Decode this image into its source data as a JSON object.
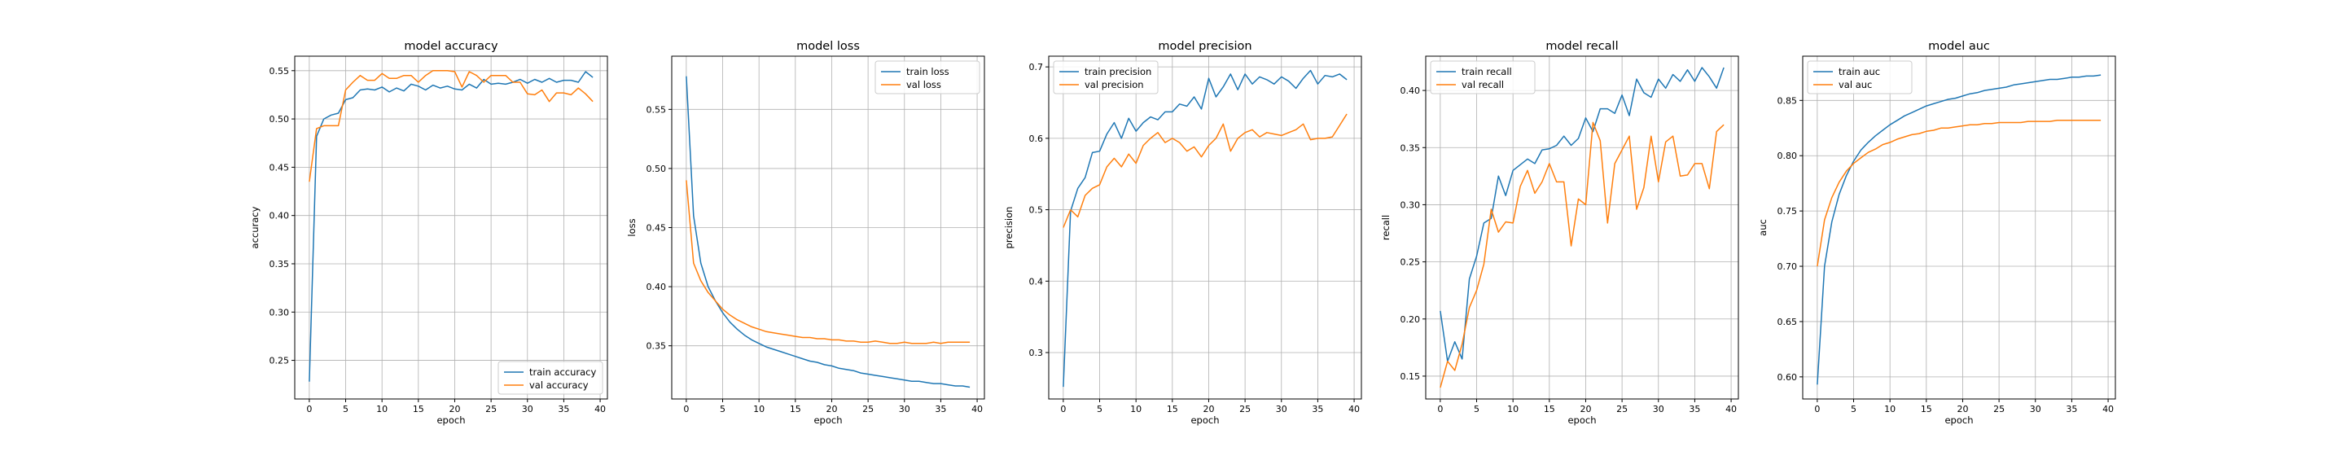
{
  "figure": {
    "background": "#ffffff",
    "grid": true
  },
  "chart_data": [
    {
      "type": "line",
      "title": "model accuracy",
      "xlabel": "epoch",
      "ylabel": "accuracy",
      "xlim": [
        -2,
        41
      ],
      "ylim": [
        0.21,
        0.565
      ],
      "xticks": [
        0,
        5,
        10,
        15,
        20,
        25,
        30,
        35,
        40
      ],
      "yticks": [
        0.25,
        0.3,
        0.35,
        0.4,
        0.45,
        0.5,
        0.55
      ],
      "ytick_labels": [
        "0.25",
        "0.30",
        "0.35",
        "0.40",
        "0.45",
        "0.50",
        "0.55"
      ],
      "legend_loc": "lower right",
      "grid": true,
      "x": [
        0,
        1,
        2,
        3,
        4,
        5,
        6,
        7,
        8,
        9,
        10,
        11,
        12,
        13,
        14,
        15,
        16,
        17,
        18,
        19,
        20,
        21,
        22,
        23,
        24,
        25,
        26,
        27,
        28,
        29,
        30,
        31,
        32,
        33,
        34,
        35,
        36,
        37,
        38,
        39
      ],
      "series": [
        {
          "name": "train accuracy",
          "color": "#1f77b4",
          "values": [
            0.228,
            0.482,
            0.5,
            0.504,
            0.506,
            0.52,
            0.522,
            0.53,
            0.531,
            0.53,
            0.533,
            0.528,
            0.532,
            0.529,
            0.536,
            0.534,
            0.53,
            0.535,
            0.532,
            0.534,
            0.531,
            0.53,
            0.536,
            0.532,
            0.541,
            0.536,
            0.537,
            0.536,
            0.538,
            0.541,
            0.537,
            0.541,
            0.538,
            0.542,
            0.538,
            0.54,
            0.54,
            0.538,
            0.549,
            0.543
          ]
        },
        {
          "name": "val accuracy",
          "color": "#ff7f0e",
          "values": [
            0.435,
            0.49,
            0.493,
            0.493,
            0.493,
            0.53,
            0.538,
            0.545,
            0.54,
            0.54,
            0.547,
            0.542,
            0.542,
            0.545,
            0.545,
            0.538,
            0.545,
            0.55,
            0.55,
            0.55,
            0.549,
            0.533,
            0.549,
            0.545,
            0.538,
            0.545,
            0.545,
            0.545,
            0.538,
            0.538,
            0.526,
            0.525,
            0.53,
            0.518,
            0.527,
            0.527,
            0.525,
            0.532,
            0.526,
            0.518
          ]
        }
      ]
    },
    {
      "type": "line",
      "title": "model loss",
      "xlabel": "epoch",
      "ylabel": "loss",
      "xlim": [
        -2,
        41
      ],
      "ylim": [
        0.305,
        0.595
      ],
      "xticks": [
        0,
        5,
        10,
        15,
        20,
        25,
        30,
        35,
        40
      ],
      "yticks": [
        0.35,
        0.4,
        0.45,
        0.5,
        0.55
      ],
      "ytick_labels": [
        "0.35",
        "0.40",
        "0.45",
        "0.50",
        "0.55"
      ],
      "legend_loc": "upper right",
      "grid": true,
      "x": [
        0,
        1,
        2,
        3,
        4,
        5,
        6,
        7,
        8,
        9,
        10,
        11,
        12,
        13,
        14,
        15,
        16,
        17,
        18,
        19,
        20,
        21,
        22,
        23,
        24,
        25,
        26,
        27,
        28,
        29,
        30,
        31,
        32,
        33,
        34,
        35,
        36,
        37,
        38,
        39
      ],
      "series": [
        {
          "name": "train loss",
          "color": "#1f77b4",
          "values": [
            0.578,
            0.46,
            0.42,
            0.4,
            0.388,
            0.378,
            0.37,
            0.364,
            0.359,
            0.355,
            0.352,
            0.349,
            0.347,
            0.345,
            0.343,
            0.341,
            0.339,
            0.337,
            0.336,
            0.334,
            0.333,
            0.331,
            0.33,
            0.329,
            0.327,
            0.326,
            0.325,
            0.324,
            0.323,
            0.322,
            0.321,
            0.32,
            0.32,
            0.319,
            0.318,
            0.318,
            0.317,
            0.316,
            0.316,
            0.315
          ]
        },
        {
          "name": "val loss",
          "color": "#ff7f0e",
          "values": [
            0.49,
            0.42,
            0.405,
            0.395,
            0.388,
            0.381,
            0.376,
            0.372,
            0.369,
            0.366,
            0.364,
            0.362,
            0.361,
            0.36,
            0.359,
            0.358,
            0.357,
            0.357,
            0.356,
            0.356,
            0.355,
            0.355,
            0.354,
            0.354,
            0.353,
            0.353,
            0.354,
            0.353,
            0.352,
            0.352,
            0.353,
            0.352,
            0.352,
            0.352,
            0.353,
            0.352,
            0.353,
            0.353,
            0.353,
            0.353
          ]
        }
      ]
    },
    {
      "type": "line",
      "title": "model precision",
      "xlabel": "epoch",
      "ylabel": "precision",
      "xlim": [
        -2,
        41
      ],
      "ylim": [
        0.235,
        0.715
      ],
      "xticks": [
        0,
        5,
        10,
        15,
        20,
        25,
        30,
        35,
        40
      ],
      "yticks": [
        0.3,
        0.4,
        0.5,
        0.6,
        0.7
      ],
      "ytick_labels": [
        "0.3",
        "0.4",
        "0.5",
        "0.6",
        "0.7"
      ],
      "legend_loc": "upper left",
      "grid": true,
      "x": [
        0,
        1,
        2,
        3,
        4,
        5,
        6,
        7,
        8,
        9,
        10,
        11,
        12,
        13,
        14,
        15,
        16,
        17,
        18,
        19,
        20,
        21,
        22,
        23,
        24,
        25,
        26,
        27,
        28,
        29,
        30,
        31,
        32,
        33,
        34,
        35,
        36,
        37,
        38,
        39
      ],
      "series": [
        {
          "name": "train precision",
          "color": "#1f77b4",
          "values": [
            0.252,
            0.498,
            0.53,
            0.545,
            0.58,
            0.582,
            0.606,
            0.622,
            0.6,
            0.628,
            0.61,
            0.622,
            0.63,
            0.626,
            0.637,
            0.637,
            0.648,
            0.645,
            0.658,
            0.641,
            0.684,
            0.658,
            0.672,
            0.69,
            0.668,
            0.69,
            0.676,
            0.686,
            0.682,
            0.676,
            0.686,
            0.68,
            0.67,
            0.684,
            0.695,
            0.676,
            0.688,
            0.686,
            0.69,
            0.682
          ]
        },
        {
          "name": "val precision",
          "color": "#ff7f0e",
          "values": [
            0.475,
            0.5,
            0.49,
            0.52,
            0.53,
            0.535,
            0.56,
            0.572,
            0.56,
            0.578,
            0.565,
            0.59,
            0.6,
            0.608,
            0.594,
            0.6,
            0.594,
            0.582,
            0.588,
            0.574,
            0.59,
            0.6,
            0.62,
            0.582,
            0.6,
            0.608,
            0.612,
            0.602,
            0.608,
            0.606,
            0.604,
            0.608,
            0.612,
            0.62,
            0.598,
            0.6,
            0.6,
            0.602,
            0.618,
            0.634
          ]
        }
      ]
    },
    {
      "type": "line",
      "title": "model recall",
      "xlabel": "epoch",
      "ylabel": "recall",
      "xlim": [
        -2,
        41
      ],
      "ylim": [
        0.13,
        0.43
      ],
      "xticks": [
        0,
        5,
        10,
        15,
        20,
        25,
        30,
        35,
        40
      ],
      "yticks": [
        0.15,
        0.2,
        0.25,
        0.3,
        0.35,
        0.4
      ],
      "ytick_labels": [
        "0.15",
        "0.20",
        "0.25",
        "0.30",
        "0.35",
        "0.40"
      ],
      "legend_loc": "upper left",
      "grid": true,
      "x": [
        0,
        1,
        2,
        3,
        4,
        5,
        6,
        7,
        8,
        9,
        10,
        11,
        12,
        13,
        14,
        15,
        16,
        17,
        18,
        19,
        20,
        21,
        22,
        23,
        24,
        25,
        26,
        27,
        28,
        29,
        30,
        31,
        32,
        33,
        34,
        35,
        36,
        37,
        38,
        39
      ],
      "series": [
        {
          "name": "train recall",
          "color": "#1f77b4",
          "values": [
            0.207,
            0.163,
            0.18,
            0.165,
            0.235,
            0.255,
            0.284,
            0.288,
            0.325,
            0.308,
            0.33,
            0.335,
            0.34,
            0.336,
            0.348,
            0.349,
            0.352,
            0.36,
            0.352,
            0.358,
            0.376,
            0.364,
            0.384,
            0.384,
            0.38,
            0.396,
            0.378,
            0.41,
            0.398,
            0.394,
            0.41,
            0.402,
            0.414,
            0.408,
            0.418,
            0.408,
            0.42,
            0.412,
            0.402,
            0.42
          ]
        },
        {
          "name": "val recall",
          "color": "#ff7f0e",
          "values": [
            0.14,
            0.163,
            0.155,
            0.178,
            0.21,
            0.225,
            0.248,
            0.296,
            0.276,
            0.285,
            0.284,
            0.316,
            0.33,
            0.31,
            0.32,
            0.336,
            0.32,
            0.32,
            0.264,
            0.305,
            0.3,
            0.372,
            0.356,
            0.284,
            0.336,
            0.348,
            0.36,
            0.296,
            0.315,
            0.36,
            0.32,
            0.355,
            0.36,
            0.325,
            0.326,
            0.336,
            0.336,
            0.314,
            0.364,
            0.37
          ]
        }
      ]
    },
    {
      "type": "line",
      "title": "model auc",
      "xlabel": "epoch",
      "ylabel": "auc",
      "xlim": [
        -2,
        41
      ],
      "ylim": [
        0.58,
        0.89
      ],
      "xticks": [
        0,
        5,
        10,
        15,
        20,
        25,
        30,
        35,
        40
      ],
      "yticks": [
        0.6,
        0.65,
        0.7,
        0.75,
        0.8,
        0.85
      ],
      "ytick_labels": [
        "0.60",
        "0.65",
        "0.70",
        "0.75",
        "0.80",
        "0.85"
      ],
      "legend_loc": "upper left",
      "grid": true,
      "x": [
        0,
        1,
        2,
        3,
        4,
        5,
        6,
        7,
        8,
        9,
        10,
        11,
        12,
        13,
        14,
        15,
        16,
        17,
        18,
        19,
        20,
        21,
        22,
        23,
        24,
        25,
        26,
        27,
        28,
        29,
        30,
        31,
        32,
        33,
        34,
        35,
        36,
        37,
        38,
        39
      ],
      "series": [
        {
          "name": "train auc",
          "color": "#1f77b4",
          "values": [
            0.593,
            0.7,
            0.74,
            0.765,
            0.782,
            0.795,
            0.805,
            0.812,
            0.818,
            0.823,
            0.828,
            0.832,
            0.836,
            0.839,
            0.842,
            0.845,
            0.847,
            0.849,
            0.851,
            0.852,
            0.854,
            0.856,
            0.857,
            0.859,
            0.86,
            0.861,
            0.862,
            0.864,
            0.865,
            0.866,
            0.867,
            0.868,
            0.869,
            0.869,
            0.87,
            0.871,
            0.871,
            0.872,
            0.872,
            0.873
          ]
        },
        {
          "name": "val auc",
          "color": "#ff7f0e",
          "values": [
            0.7,
            0.742,
            0.762,
            0.776,
            0.786,
            0.793,
            0.798,
            0.803,
            0.806,
            0.81,
            0.812,
            0.815,
            0.817,
            0.819,
            0.82,
            0.822,
            0.823,
            0.825,
            0.825,
            0.826,
            0.827,
            0.828,
            0.828,
            0.829,
            0.829,
            0.83,
            0.83,
            0.83,
            0.83,
            0.831,
            0.831,
            0.831,
            0.831,
            0.832,
            0.832,
            0.832,
            0.832,
            0.832,
            0.832,
            0.832
          ]
        }
      ]
    }
  ]
}
